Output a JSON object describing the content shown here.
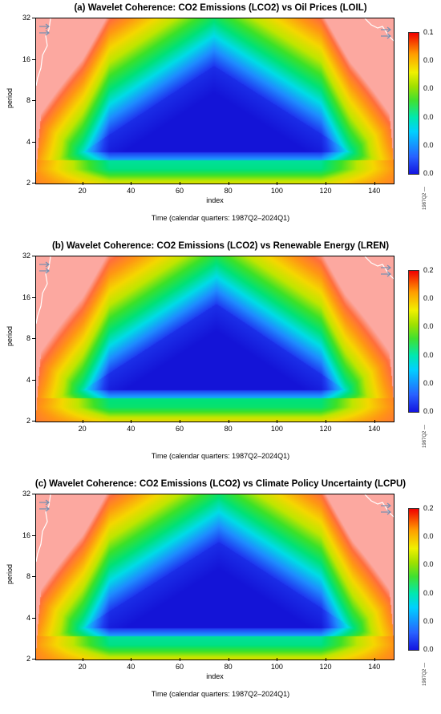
{
  "chart_data": [
    {
      "type": "heatmap",
      "title": "(a) Wavelet Coherence: CO2 Emissions (LCO2) vs Oil Prices (LOIL)",
      "xlabel": "index",
      "ylabel": "period",
      "caption": "Time (calendar quarters: 1987Q2–2024Q1)",
      "x_ticks": [
        20,
        40,
        60,
        80,
        100,
        120,
        140
      ],
      "y_ticks": [
        2,
        4,
        8,
        16,
        32
      ],
      "xlim": [
        1,
        148
      ],
      "ylim": [
        2,
        32
      ],
      "y_scale": "log2",
      "colorbar_ticks": [
        "0.0",
        "0.0",
        "0.0",
        "0.0",
        "0.0",
        "0.1"
      ],
      "colorbar_side_text": "1987Q2 —",
      "colorbar_range": [
        0,
        0.1
      ],
      "high_coherence_region": {
        "x_range": [
          20,
          130
        ],
        "period_range": [
          3.4,
          14.5
        ],
        "peak_index": 74
      }
    },
    {
      "type": "heatmap",
      "title": "(b) Wavelet Coherence: CO2 Emissions (LCO2) vs Renewable Energy (LREN)",
      "xlabel": "",
      "ylabel": "period",
      "caption": "Time (calendar quarters: 1987Q2–2024Q1)",
      "x_ticks": [
        20,
        40,
        60,
        80,
        100,
        120,
        140
      ],
      "y_ticks": [
        2,
        4,
        8,
        16,
        32
      ],
      "xlim": [
        1,
        148
      ],
      "ylim": [
        2,
        32
      ],
      "y_scale": "log2",
      "colorbar_ticks": [
        "0.0",
        "0.0",
        "0.0",
        "0.0",
        "0.0",
        "0.2"
      ],
      "colorbar_side_text": "1987Q2 —",
      "colorbar_range": [
        0,
        0.2
      ],
      "high_coherence_region": {
        "x_range": [
          20,
          128
        ],
        "period_range": [
          3.4,
          14.5
        ],
        "peak_index": 75
      }
    },
    {
      "type": "heatmap",
      "title": "(c) Wavelet Coherence: CO2 Emissions (LCO2) vs Climate Policy Uncertainty (LCPU)",
      "xlabel": "index",
      "ylabel": "period",
      "caption": "Time (calendar quarters: 1987Q2–2024Q1)",
      "x_ticks": [
        20,
        40,
        60,
        80,
        100,
        120,
        140
      ],
      "y_ticks": [
        2,
        4,
        8,
        16,
        32
      ],
      "xlim": [
        1,
        148
      ],
      "ylim": [
        2,
        32
      ],
      "y_scale": "log2",
      "colorbar_ticks": [
        "0.0",
        "0.0",
        "0.0",
        "0.0",
        "0.0",
        "0.2"
      ],
      "colorbar_side_text": "1987Q2 —",
      "colorbar_range": [
        0,
        0.2
      ],
      "high_coherence_region": {
        "x_range": [
          20,
          131
        ],
        "period_range": [
          3.4,
          14.5
        ],
        "peak_index": 76
      }
    }
  ]
}
